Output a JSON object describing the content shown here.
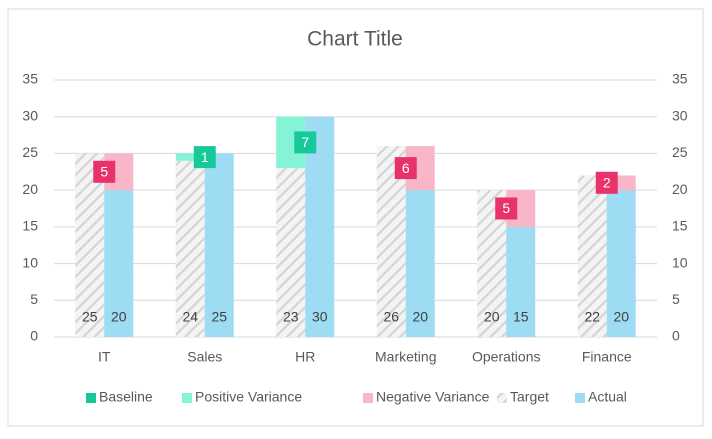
{
  "chart_data": {
    "type": "bar",
    "title": "Chart Title",
    "categories": [
      "IT",
      "Sales",
      "HR",
      "Marketing",
      "Operations",
      "Finance"
    ],
    "series": [
      {
        "name": "Baseline",
        "color": "#17c99a"
      },
      {
        "name": "Positive Variance",
        "color": "#84f3d6",
        "label_color": "#17c99a",
        "values": [
          null,
          1,
          7,
          null,
          null,
          null
        ]
      },
      {
        "name": "Negative Variance",
        "color": "#f9b6c9",
        "label_color": "#e8336a",
        "values": [
          5,
          null,
          null,
          6,
          5,
          2
        ]
      },
      {
        "name": "Target",
        "color": "#d4d4d4",
        "hatch": true,
        "values": [
          25,
          24,
          23,
          26,
          20,
          22
        ]
      },
      {
        "name": "Actual",
        "color": "#9edcf3",
        "values": [
          20,
          25,
          30,
          20,
          15,
          20
        ]
      }
    ],
    "ylim": [
      0,
      35
    ],
    "yticks": [
      0,
      5,
      10,
      15,
      20,
      25,
      30,
      35
    ],
    "y2lim": [
      0,
      35
    ],
    "y2ticks": [
      0,
      5,
      10,
      15,
      20,
      25,
      30,
      35
    ],
    "grid": true,
    "legend": "bottom"
  }
}
